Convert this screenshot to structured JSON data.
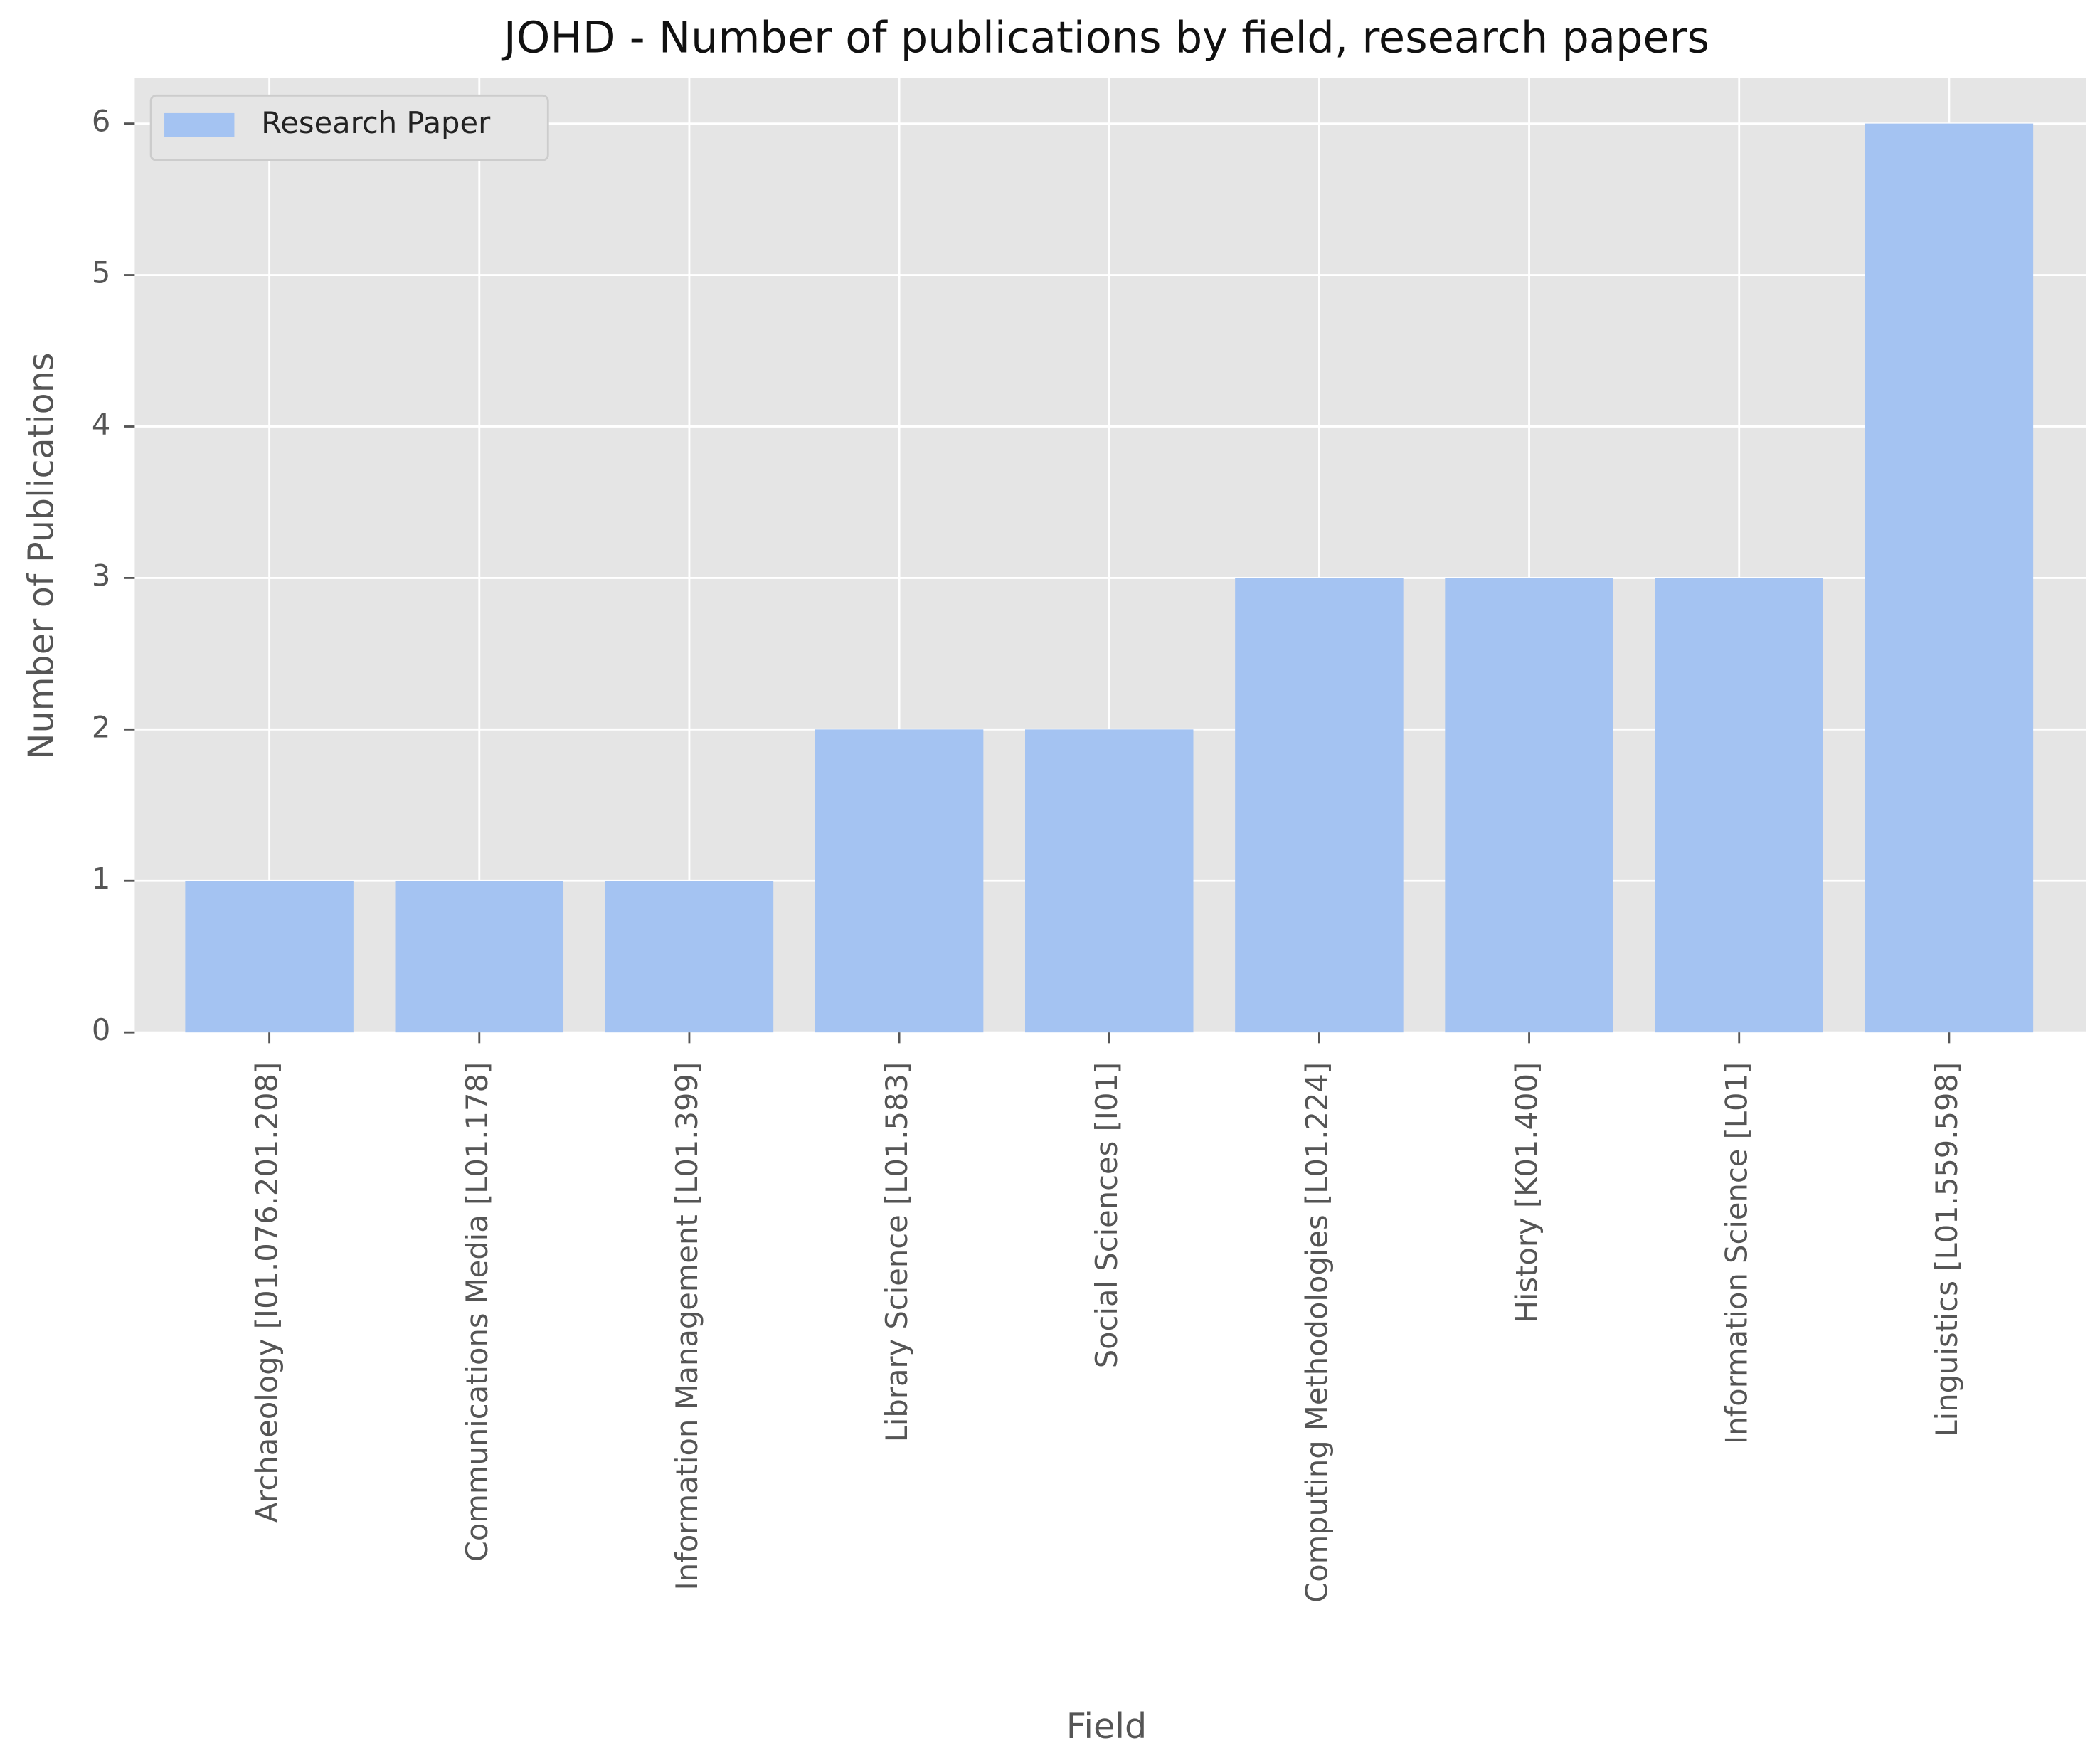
{
  "chart_data": {
    "type": "bar",
    "title": "JOHD - Number of publications by field, research papers",
    "x_label": "Field",
    "y_label": "Number of Publications",
    "categories": [
      "Archaeology [I01.076.201.208]",
      "Communications Media [L01.178]",
      "Information Management [L01.399]",
      "Library Science [L01.583]",
      "Social Sciences [I01]",
      "Computing Methodologies [L01.224]",
      "History [K01.400]",
      "Information Science [L01]",
      "Linguistics [L01.559.598]"
    ],
    "series": [
      {
        "name": "Research Paper",
        "color": "#a4c3f2",
        "values": [
          1,
          1,
          1,
          2,
          2,
          3,
          3,
          3,
          6
        ]
      }
    ],
    "ylim": [
      0,
      6.3
    ],
    "yticks": [
      0,
      1,
      2,
      3,
      4,
      5,
      6
    ],
    "grid": true,
    "legend": "upper-left"
  }
}
